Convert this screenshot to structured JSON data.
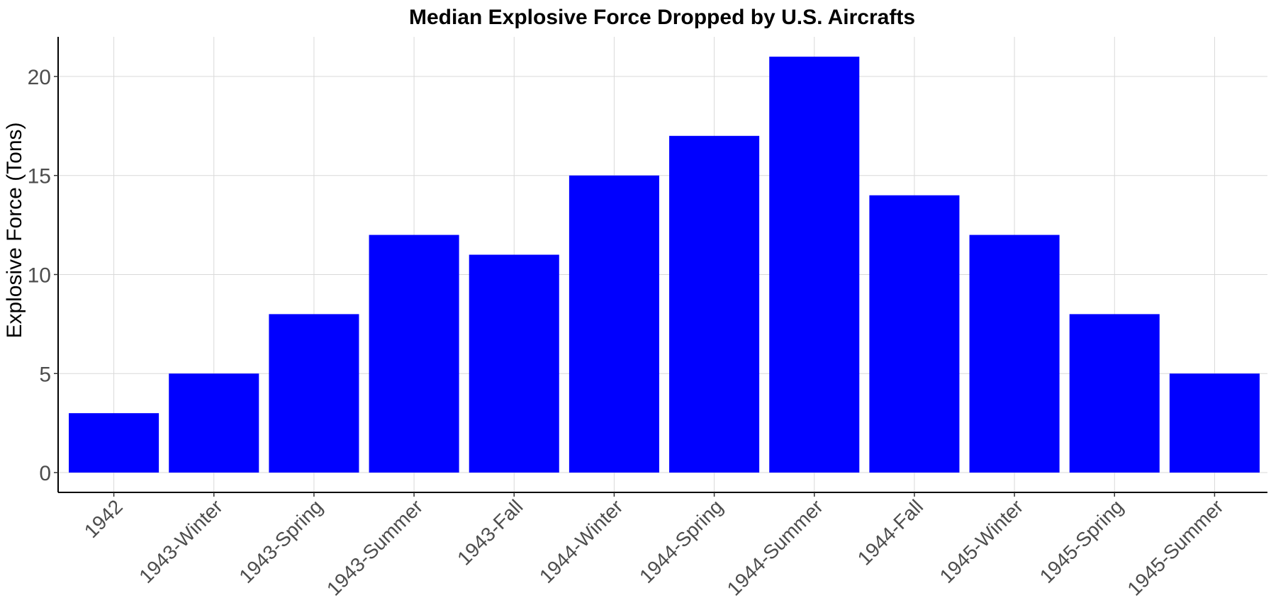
{
  "chart_data": {
    "type": "bar",
    "title": "Median Explosive Force Dropped by U.S. Aircrafts",
    "xlabel": "",
    "ylabel": "Explosive Force (Tons)",
    "categories": [
      "1942",
      "1943-Winter",
      "1943-Spring",
      "1943-Summer",
      "1943-Fall",
      "1944-Winter",
      "1944-Spring",
      "1944-Summer",
      "1944-Fall",
      "1945-Winter",
      "1945-Spring",
      "1945-Summer"
    ],
    "values": [
      3,
      5,
      8,
      12,
      11,
      15,
      17,
      21,
      14,
      12,
      8,
      5
    ],
    "ylim": [
      -1,
      22
    ],
    "yticks": [
      0,
      5,
      10,
      15,
      20
    ],
    "grid": true,
    "legend": "none",
    "bar_color": "#0000ff"
  }
}
